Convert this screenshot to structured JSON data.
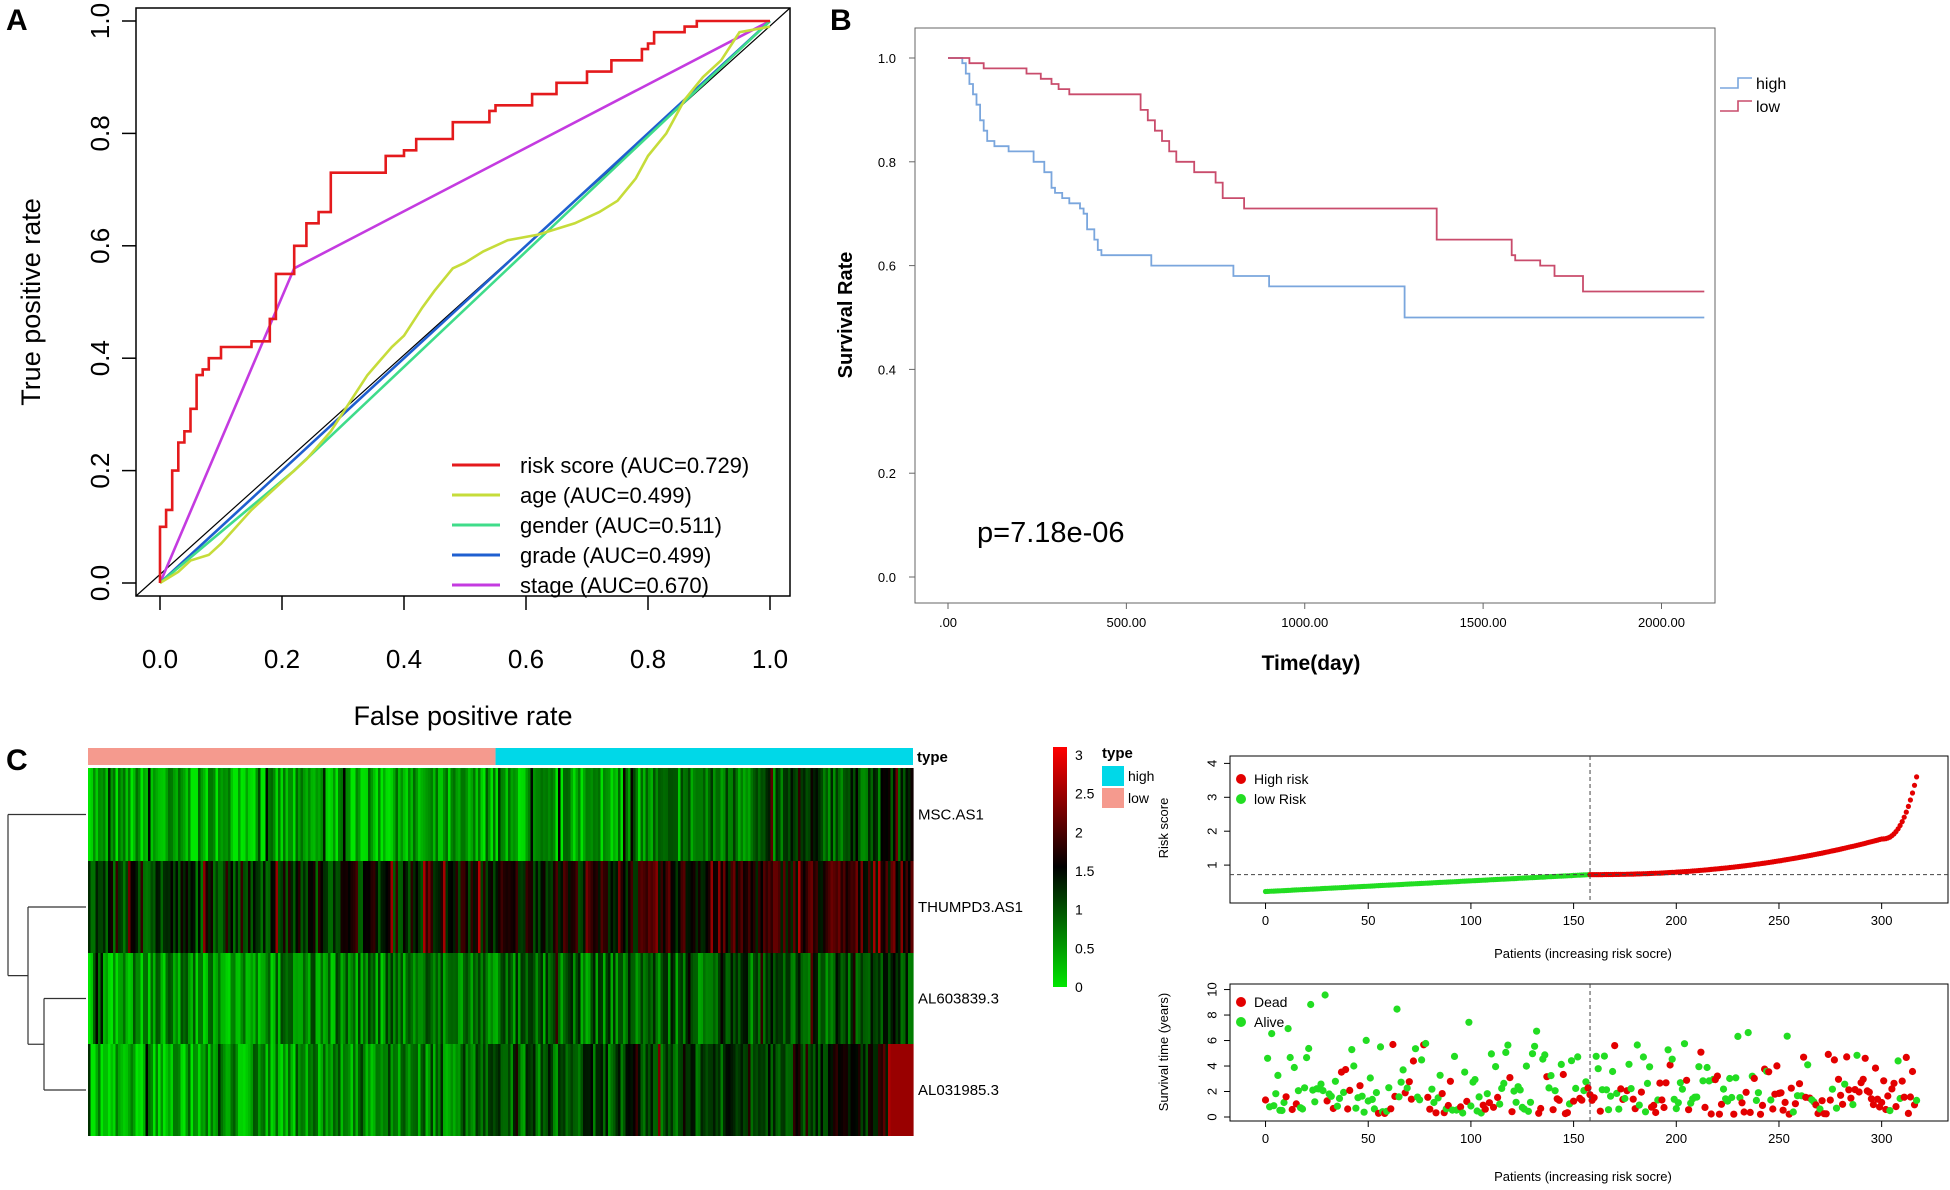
{
  "panels": {
    "a": "A",
    "b": "B",
    "c": "C"
  },
  "chart_data": [
    {
      "id": "roc",
      "type": "line",
      "title": "",
      "xlabel": "False positive rate",
      "ylabel": "True positive rate",
      "xlim": [
        0,
        1
      ],
      "ylim": [
        0,
        1
      ],
      "xticks": [
        "0.0",
        "0.2",
        "0.4",
        "0.6",
        "0.8",
        "1.0"
      ],
      "yticks": [
        "0.0",
        "0.2",
        "0.4",
        "0.6",
        "0.8",
        "1.0"
      ],
      "legend_position": "bottom-right",
      "series": [
        {
          "name": "risk score (AUC=0.729)",
          "color": "#e41a1c",
          "step": true,
          "x": [
            0,
            0,
            0.01,
            0.01,
            0.02,
            0.02,
            0.03,
            0.03,
            0.04,
            0.04,
            0.05,
            0.05,
            0.06,
            0.06,
            0.07,
            0.07,
            0.08,
            0.08,
            0.1,
            0.1,
            0.15,
            0.15,
            0.18,
            0.18,
            0.19,
            0.19,
            0.22,
            0.22,
            0.24,
            0.24,
            0.26,
            0.26,
            0.28,
            0.28,
            0.37,
            0.37,
            0.4,
            0.4,
            0.42,
            0.42,
            0.48,
            0.48,
            0.54,
            0.54,
            0.55,
            0.55,
            0.61,
            0.61,
            0.65,
            0.65,
            0.7,
            0.7,
            0.74,
            0.74,
            0.79,
            0.79,
            0.8,
            0.8,
            0.81,
            0.81,
            0.86,
            0.86,
            0.88,
            0.88,
            0.93,
            0.93,
            1.0
          ],
          "y": [
            0,
            0.1,
            0.1,
            0.13,
            0.13,
            0.2,
            0.2,
            0.25,
            0.25,
            0.27,
            0.27,
            0.31,
            0.31,
            0.37,
            0.37,
            0.38,
            0.38,
            0.4,
            0.4,
            0.42,
            0.42,
            0.43,
            0.43,
            0.47,
            0.47,
            0.55,
            0.55,
            0.6,
            0.6,
            0.64,
            0.64,
            0.66,
            0.66,
            0.73,
            0.73,
            0.76,
            0.76,
            0.77,
            0.77,
            0.79,
            0.79,
            0.82,
            0.82,
            0.84,
            0.84,
            0.85,
            0.85,
            0.87,
            0.87,
            0.89,
            0.89,
            0.91,
            0.91,
            0.93,
            0.93,
            0.95,
            0.95,
            0.96,
            0.96,
            0.98,
            0.98,
            0.99,
            0.99,
            1.0,
            1.0,
            1.0,
            1.0
          ]
        },
        {
          "name": "age (AUC=0.499)",
          "color": "#c6dc3a",
          "step": false,
          "x": [
            0,
            0.03,
            0.05,
            0.08,
            0.1,
            0.15,
            0.2,
            0.24,
            0.28,
            0.31,
            0.34,
            0.38,
            0.4,
            0.43,
            0.45,
            0.48,
            0.5,
            0.53,
            0.57,
            0.62,
            0.68,
            0.72,
            0.75,
            0.78,
            0.8,
            0.83,
            0.86,
            0.89,
            0.92,
            0.95,
            1.0
          ],
          "y": [
            0,
            0.02,
            0.04,
            0.05,
            0.07,
            0.13,
            0.18,
            0.22,
            0.27,
            0.32,
            0.37,
            0.42,
            0.44,
            0.49,
            0.52,
            0.56,
            0.57,
            0.59,
            0.61,
            0.62,
            0.64,
            0.66,
            0.68,
            0.72,
            0.76,
            0.8,
            0.86,
            0.9,
            0.93,
            0.98,
            0.99
          ]
        },
        {
          "name": "gender (AUC=0.511)",
          "color": "#3fdc8a",
          "step": false,
          "x": [
            0,
            0.22,
            1.0
          ],
          "y": [
            0,
            0.2,
            1.0
          ]
        },
        {
          "name": "grade (AUC=0.499)",
          "color": "#1f5fd0",
          "step": false,
          "x": [
            0,
            1.0
          ],
          "y": [
            0,
            1.0
          ]
        },
        {
          "name": "stage (AUC=0.670)",
          "color": "#c43be0",
          "step": false,
          "x": [
            0,
            0.22,
            1.0
          ],
          "y": [
            0,
            0.56,
            1.0
          ]
        }
      ]
    },
    {
      "id": "survival",
      "type": "line",
      "title": "",
      "xlabel": "Time(day)",
      "ylabel": "Survival Rate",
      "xlim": [
        0,
        2150
      ],
      "ylim": [
        -0.06,
        1.06
      ],
      "xticks": [
        ".00",
        "500.00",
        "1000.00",
        "1500.00",
        "2000.00"
      ],
      "yticks": [
        "0.0",
        "0.2",
        "0.4",
        "0.6",
        "0.8",
        "1.0"
      ],
      "annotation": "p=7.18e-06",
      "legend_position": "top-right",
      "series": [
        {
          "name": "high",
          "color": "#7aa6dd",
          "x": [
            0,
            40,
            50,
            60,
            70,
            80,
            90,
            100,
            110,
            130,
            170,
            240,
            270,
            290,
            300,
            320,
            340,
            370,
            380,
            390,
            410,
            420,
            430,
            450,
            570,
            800,
            900,
            1010,
            1280,
            2120
          ],
          "y": [
            1.0,
            0.99,
            0.97,
            0.95,
            0.93,
            0.91,
            0.88,
            0.86,
            0.84,
            0.83,
            0.82,
            0.8,
            0.78,
            0.75,
            0.74,
            0.73,
            0.72,
            0.71,
            0.7,
            0.67,
            0.65,
            0.63,
            0.62,
            0.62,
            0.6,
            0.58,
            0.56,
            0.56,
            0.5,
            0.5
          ]
        },
        {
          "name": "low",
          "color": "#c94c6c",
          "x": [
            0,
            60,
            100,
            150,
            220,
            260,
            290,
            310,
            340,
            430,
            540,
            560,
            580,
            600,
            620,
            640,
            690,
            750,
            770,
            830,
            930,
            1240,
            1370,
            1580,
            1590,
            1660,
            1700,
            1780,
            2120
          ],
          "y": [
            1.0,
            0.99,
            0.98,
            0.98,
            0.97,
            0.96,
            0.95,
            0.94,
            0.93,
            0.93,
            0.9,
            0.88,
            0.86,
            0.84,
            0.82,
            0.8,
            0.78,
            0.76,
            0.73,
            0.71,
            0.71,
            0.71,
            0.65,
            0.62,
            0.61,
            0.6,
            0.58,
            0.55,
            0.55
          ]
        }
      ]
    },
    {
      "id": "heatmap",
      "type": "heatmap",
      "rows": [
        "MSC.AS1",
        "THUMPD3.AS1",
        "AL603839.3",
        "AL031985.3"
      ],
      "annotation_label": "type",
      "groups": [
        {
          "name": "high",
          "color": "#00d8e8"
        },
        {
          "name": "low",
          "color": "#f59a8e"
        }
      ],
      "group_split_fraction": 0.5,
      "colorbar": {
        "ticks": [
          "0",
          "0.5",
          "1",
          "1.5",
          "2",
          "2.5",
          "3"
        ],
        "min": 0,
        "max": 3,
        "low_color": "#00e600",
        "mid_color": "#000000",
        "high_color": "#ff0000"
      }
    },
    {
      "id": "risk_score",
      "type": "scatter",
      "xlabel": "Patients (increasing risk socre)",
      "ylabel": "Risk score",
      "xlim": [
        -10,
        325
      ],
      "ylim": [
        0,
        4.1
      ],
      "xticks": [
        "0",
        "50",
        "100",
        "150",
        "200",
        "250",
        "300"
      ],
      "yticks": [
        "1",
        "2",
        "3",
        "4"
      ],
      "cutoff_patient": 158,
      "cutoff_score": 0.72,
      "n_patients": 318,
      "legend": [
        {
          "name": "High risk",
          "color": "#e30000"
        },
        {
          "name": "low Risk",
          "color": "#22dd22"
        }
      ]
    },
    {
      "id": "survival_time",
      "type": "scatter",
      "xlabel": "Patients (increasing risk socre)",
      "ylabel": "Survival time (years)",
      "xlim": [
        -10,
        325
      ],
      "ylim": [
        0,
        10.2
      ],
      "xticks": [
        "0",
        "50",
        "100",
        "150",
        "200",
        "250",
        "300"
      ],
      "yticks": [
        "0",
        "2",
        "4",
        "6",
        "8",
        "10"
      ],
      "cutoff_patient": 158,
      "legend": [
        {
          "name": "Dead",
          "color": "#e30000"
        },
        {
          "name": "Alive",
          "color": "#22dd22"
        }
      ]
    }
  ]
}
